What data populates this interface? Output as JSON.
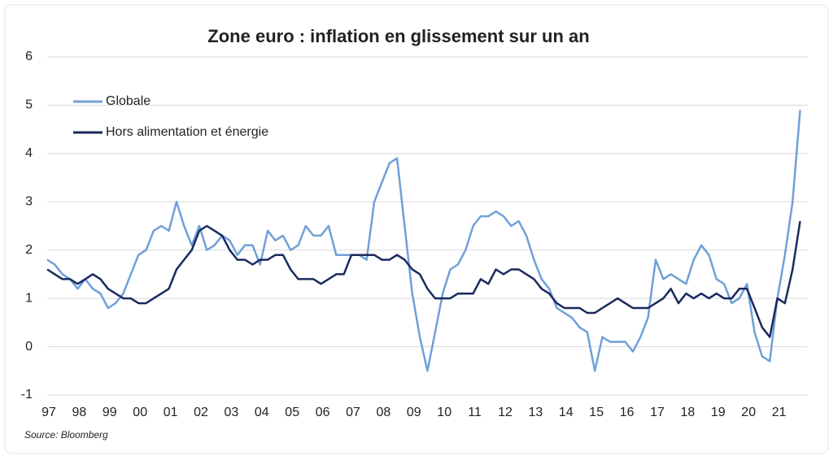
{
  "chart_data": {
    "type": "line",
    "title": "Zone euro : inflation en glissement sur un an",
    "source": "Source: Bloomberg",
    "x": [
      1997,
      1997.25,
      1997.5,
      1997.75,
      1998,
      1998.25,
      1998.5,
      1998.75,
      1999,
      1999.25,
      1999.5,
      1999.75,
      2000,
      2000.25,
      2000.5,
      2000.75,
      2001,
      2001.25,
      2001.5,
      2001.75,
      2002,
      2002.25,
      2002.5,
      2002.75,
      2003,
      2003.25,
      2003.5,
      2003.75,
      2004,
      2004.25,
      2004.5,
      2004.75,
      2005,
      2005.25,
      2005.5,
      2005.75,
      2006,
      2006.25,
      2006.5,
      2006.75,
      2007,
      2007.25,
      2007.5,
      2007.75,
      2008,
      2008.25,
      2008.5,
      2008.75,
      2009,
      2009.25,
      2009.5,
      2009.75,
      2010,
      2010.25,
      2010.5,
      2010.75,
      2011,
      2011.25,
      2011.5,
      2011.75,
      2012,
      2012.25,
      2012.5,
      2012.75,
      2013,
      2013.25,
      2013.5,
      2013.75,
      2014,
      2014.25,
      2014.5,
      2014.75,
      2015,
      2015.25,
      2015.5,
      2015.75,
      2016,
      2016.25,
      2016.5,
      2016.75,
      2017,
      2017.25,
      2017.5,
      2017.75,
      2018,
      2018.25,
      2018.5,
      2018.75,
      2019,
      2019.25,
      2019.5,
      2019.75,
      2020,
      2020.25,
      2020.5,
      2020.75,
      2021,
      2021.25,
      2021.5,
      2021.75
    ],
    "series": [
      {
        "name": "Globale",
        "color": "#6fa0d8",
        "values": [
          1.8,
          1.7,
          1.5,
          1.4,
          1.2,
          1.4,
          1.2,
          1.1,
          0.8,
          0.9,
          1.1,
          1.5,
          1.9,
          2.0,
          2.4,
          2.5,
          2.4,
          3.0,
          2.5,
          2.1,
          2.5,
          2.0,
          2.1,
          2.3,
          2.2,
          1.9,
          2.1,
          2.1,
          1.7,
          2.4,
          2.2,
          2.3,
          2.0,
          2.1,
          2.5,
          2.3,
          2.3,
          2.5,
          1.9,
          1.9,
          1.9,
          1.9,
          1.8,
          3.0,
          3.4,
          3.8,
          3.9,
          2.5,
          1.1,
          0.2,
          -0.5,
          0.3,
          1.1,
          1.6,
          1.7,
          2.0,
          2.5,
          2.7,
          2.7,
          2.8,
          2.7,
          2.5,
          2.6,
          2.3,
          1.8,
          1.4,
          1.2,
          0.8,
          0.7,
          0.6,
          0.4,
          0.3,
          -0.5,
          0.2,
          0.1,
          0.1,
          0.1,
          -0.1,
          0.2,
          0.6,
          1.8,
          1.4,
          1.5,
          1.4,
          1.3,
          1.8,
          2.1,
          1.9,
          1.4,
          1.3,
          0.9,
          1.0,
          1.3,
          0.3,
          -0.2,
          -0.3,
          1.0,
          1.9,
          3.0,
          4.9
        ]
      },
      {
        "name": "Hors alimentation et énergie",
        "color": "#1a2a5e",
        "values": [
          1.6,
          1.5,
          1.4,
          1.4,
          1.3,
          1.4,
          1.5,
          1.4,
          1.2,
          1.1,
          1.0,
          1.0,
          0.9,
          0.9,
          1.0,
          1.1,
          1.2,
          1.6,
          1.8,
          2.0,
          2.4,
          2.5,
          2.4,
          2.3,
          2.0,
          1.8,
          1.8,
          1.7,
          1.8,
          1.8,
          1.9,
          1.9,
          1.6,
          1.4,
          1.4,
          1.4,
          1.3,
          1.4,
          1.5,
          1.5,
          1.9,
          1.9,
          1.9,
          1.9,
          1.8,
          1.8,
          1.9,
          1.8,
          1.6,
          1.5,
          1.2,
          1.0,
          1.0,
          1.0,
          1.1,
          1.1,
          1.1,
          1.4,
          1.3,
          1.6,
          1.5,
          1.6,
          1.6,
          1.5,
          1.4,
          1.2,
          1.1,
          0.9,
          0.8,
          0.8,
          0.8,
          0.7,
          0.7,
          0.8,
          0.9,
          1.0,
          0.9,
          0.8,
          0.8,
          0.8,
          0.9,
          1.0,
          1.2,
          0.9,
          1.1,
          1.0,
          1.1,
          1.0,
          1.1,
          1.0,
          1.0,
          1.2,
          1.2,
          0.8,
          0.4,
          0.2,
          1.0,
          0.9,
          1.6,
          2.6
        ]
      }
    ],
    "xlim": [
      1997,
      2022
    ],
    "xticks": [
      {
        "value": 1997,
        "label": "97"
      },
      {
        "value": 1998,
        "label": "98"
      },
      {
        "value": 1999,
        "label": "99"
      },
      {
        "value": 2000,
        "label": "00"
      },
      {
        "value": 2001,
        "label": "01"
      },
      {
        "value": 2002,
        "label": "02"
      },
      {
        "value": 2003,
        "label": "03"
      },
      {
        "value": 2004,
        "label": "04"
      },
      {
        "value": 2005,
        "label": "05"
      },
      {
        "value": 2006,
        "label": "06"
      },
      {
        "value": 2007,
        "label": "07"
      },
      {
        "value": 2008,
        "label": "08"
      },
      {
        "value": 2009,
        "label": "09"
      },
      {
        "value": 2010,
        "label": "10"
      },
      {
        "value": 2011,
        "label": "11"
      },
      {
        "value": 2012,
        "label": "12"
      },
      {
        "value": 2013,
        "label": "13"
      },
      {
        "value": 2014,
        "label": "14"
      },
      {
        "value": 2015,
        "label": "15"
      },
      {
        "value": 2016,
        "label": "16"
      },
      {
        "value": 2017,
        "label": "17"
      },
      {
        "value": 2018,
        "label": "18"
      },
      {
        "value": 2019,
        "label": "19"
      },
      {
        "value": 2020,
        "label": "20"
      },
      {
        "value": 2021,
        "label": "21"
      }
    ],
    "ylim": [
      -1,
      6
    ],
    "yticks": [
      -1,
      0,
      1,
      2,
      3,
      4,
      5,
      6
    ],
    "grid": true,
    "legend": "upper left"
  }
}
